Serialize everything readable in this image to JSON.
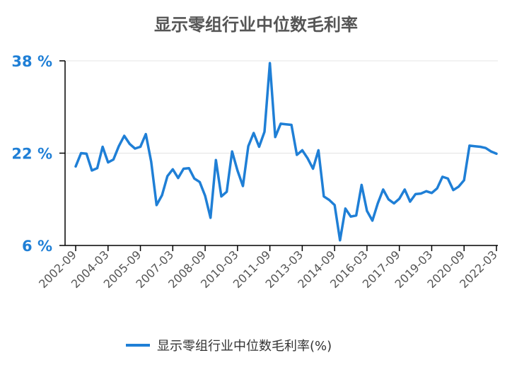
{
  "chart_data": {
    "type": "line",
    "title": "显示零组行业中位数毛利率",
    "y_unit": "%",
    "y_ticks": [
      "38 %",
      "22 %",
      "6 %"
    ],
    "ylim": [
      6,
      38
    ],
    "grid": true,
    "legend_position": "bottom",
    "x_tick_labels": [
      "2002-09",
      "2004-03",
      "2005-09",
      "2007-03",
      "2008-09",
      "2010-03",
      "2011-09",
      "2013-03",
      "2014-09",
      "2016-03",
      "2017-09",
      "2019-03",
      "2020-09",
      "2022-03"
    ],
    "series": [
      {
        "name": "显示零组行业中位数毛利率(%)",
        "color": "#1f7fd6",
        "values": [
          19.7,
          22.0,
          21.9,
          19.0,
          19.4,
          23.1,
          20.4,
          20.9,
          23.2,
          25.0,
          23.6,
          22.8,
          23.1,
          25.3,
          20.5,
          13.0,
          14.7,
          18.0,
          19.2,
          17.7,
          19.3,
          19.4,
          17.6,
          17.0,
          14.6,
          10.8,
          20.8,
          14.5,
          15.3,
          22.3,
          19.0,
          16.3,
          23.2,
          25.5,
          23.1,
          25.7,
          37.6,
          24.8,
          27.1,
          27.0,
          26.9,
          21.7,
          22.5,
          21.1,
          19.3,
          22.5,
          14.5,
          13.9,
          13.0,
          6.9,
          12.4,
          11.0,
          11.2,
          16.5,
          12.0,
          10.3,
          13.3,
          15.7,
          14.0,
          13.3,
          14.1,
          15.7,
          13.6,
          14.9,
          15.0,
          15.4,
          15.1,
          15.9,
          17.9,
          17.6,
          15.6,
          16.2,
          17.3,
          23.3,
          23.2,
          23.1,
          22.9,
          22.3,
          21.9
        ]
      }
    ]
  },
  "legend": {
    "label": "显示零组行业中位数毛利率(%)"
  }
}
